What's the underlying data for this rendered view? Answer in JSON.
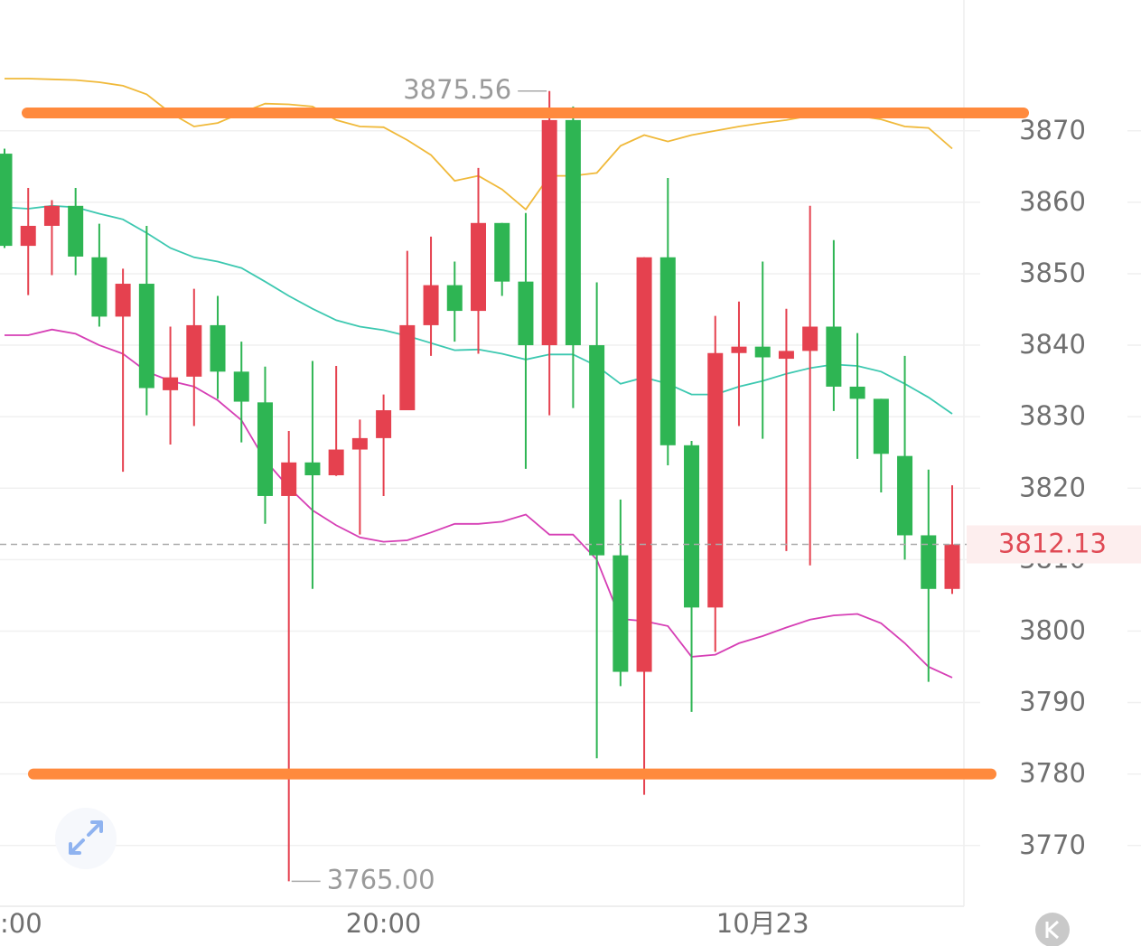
{
  "chart_data": {
    "type": "candlestick",
    "categories": [
      ":00",
      null,
      null,
      null,
      null,
      null,
      null,
      null,
      null,
      null,
      null,
      null,
      null,
      null,
      null,
      null,
      "20:00",
      null,
      null,
      null,
      null,
      null,
      null,
      null,
      null,
      null,
      null,
      null,
      null,
      null,
      null,
      null,
      "10月23",
      null,
      null,
      null,
      null,
      null,
      null,
      null,
      null
    ],
    "open": [
      3866.8,
      3853.9,
      3856.7,
      3859.5,
      3852.3,
      3844.0,
      3848.6,
      3833.7,
      3835.6,
      3842.8,
      3836.3,
      3832.0,
      3818.9,
      3823.6,
      3821.8,
      3825.4,
      3827.0,
      3830.9,
      3842.8,
      3848.4,
      3844.8,
      3857.1,
      3848.9,
      3840.0,
      3871.5,
      3840.0,
      3810.6,
      3794.3,
      3852.3,
      3826.0,
      3803.3,
      3838.9,
      3839.8,
      3838.1,
      3839.2,
      3842.6,
      3834.2,
      3832.5,
      3824.5,
      3813.4,
      3805.9
    ],
    "high": [
      3867.5,
      3862.0,
      3860.3,
      3862.0,
      3857.0,
      3850.7,
      3856.7,
      3842.6,
      3847.9,
      3846.9,
      3840.5,
      3837.0,
      3828.0,
      3837.8,
      3837.1,
      3829.6,
      3833.1,
      3853.2,
      3855.2,
      3851.7,
      3864.8,
      3857.1,
      3858.5,
      3875.56,
      3873.4,
      3848.8,
      3818.4,
      3852.3,
      3863.4,
      3826.6,
      3844.1,
      3846.1,
      3851.7,
      3845.1,
      3859.5,
      3854.7,
      3841.7,
      3832.5,
      3838.5,
      3822.6,
      3820.4
    ],
    "low": [
      3853.6,
      3847.0,
      3849.8,
      3849.8,
      3842.6,
      3822.3,
      3830.2,
      3826.1,
      3828.7,
      3832.5,
      3826.4,
      3815.0,
      3765,
      3805.9,
      3821.7,
      3813.5,
      3818.9,
      3830.9,
      3838.5,
      3840.5,
      3838.8,
      3846.9,
      3822.7,
      3830.2,
      3831.2,
      3782.2,
      3792.3,
      3777.1,
      3823.2,
      3788.7,
      3797.1,
      3828.7,
      3826.9,
      3811.2,
      3809.2,
      3830.8,
      3824.1,
      3819.4,
      3810.0,
      3792.9,
      3805.2
    ],
    "close": [
      3853.9,
      3856.7,
      3859.5,
      3852.4,
      3844.0,
      3848.6,
      3834.0,
      3835.5,
      3842.8,
      3836.3,
      3832.1,
      3818.9,
      3823.6,
      3821.8,
      3825.4,
      3827.0,
      3830.9,
      3842.8,
      3848.4,
      3844.8,
      3857.1,
      3848.9,
      3840.0,
      3871.5,
      3840.0,
      3810.6,
      3794.3,
      3852.3,
      3826.0,
      3803.3,
      3838.9,
      3839.8,
      3838.3,
      3839.2,
      3842.6,
      3834.2,
      3832.5,
      3824.8,
      3813.4,
      3805.9,
      3812.13
    ],
    "up_color": "#e5414f",
    "down_color": "#2eb553",
    "lines": [
      {
        "color": "#f0b93a",
        "values": [
          3877.3,
          3877.3,
          3877.2,
          3877.1,
          3876.8,
          3876.3,
          3875.1,
          3872.5,
          3870.6,
          3871.1,
          3872.5,
          3873.8,
          3873.7,
          3873.4,
          3871.5,
          3870.6,
          3870.5,
          3868.7,
          3866.6,
          3863.0,
          3863.7,
          3861.8,
          3859.0,
          3863.7,
          3863.7,
          3864.1,
          3867.9,
          3869.4,
          3868.5,
          3869.4,
          3870.0,
          3870.6,
          3871.1,
          3871.5,
          3872.1,
          3872.3,
          3872.1,
          3871.6,
          3870.6,
          3870.4,
          3867.5
        ]
      },
      {
        "color": "#3cc8b0",
        "values": [
          3859.3,
          3859.1,
          3859.5,
          3859.3,
          3858.4,
          3857.6,
          3855.7,
          3853.6,
          3852.3,
          3851.7,
          3850.8,
          3848.9,
          3846.9,
          3845.1,
          3843.5,
          3842.6,
          3842.1,
          3841.3,
          3840.3,
          3839.3,
          3839.4,
          3838.8,
          3838.0,
          3838.7,
          3838.7,
          3837.1,
          3834.6,
          3835.5,
          3834.6,
          3833.1,
          3833.1,
          3834.2,
          3835.0,
          3836.0,
          3836.8,
          3837.3,
          3837.1,
          3836.3,
          3834.6,
          3832.7,
          3830.4
        ]
      },
      {
        "color": "#d63fb5",
        "values": [
          3841.4,
          3841.4,
          3842.2,
          3841.6,
          3840.0,
          3838.8,
          3836.3,
          3835.0,
          3834.2,
          3832.3,
          3829.5,
          3823.9,
          3820.1,
          3816.9,
          3814.8,
          3813.1,
          3812.5,
          3812.7,
          3813.8,
          3815.0,
          3815.0,
          3815.3,
          3816.3,
          3813.5,
          3813.5,
          3810.0,
          3801.7,
          3801.4,
          3800.7,
          3796.4,
          3796.7,
          3798.3,
          3799.3,
          3800.5,
          3801.6,
          3802.2,
          3802.4,
          3801.1,
          3798.3,
          3795.0,
          3793.5
        ]
      }
    ],
    "hlines": [
      3872.5,
      3780
    ],
    "hline_color": "#ff8a3d",
    "high_label": {
      "value": 3875.56,
      "label": "3875.56"
    },
    "low_label": {
      "value": 3765,
      "label": "3765.00"
    },
    "last_price": 3812.13,
    "ylim": [
      3761.5,
      3888.3
    ],
    "yticks": [
      3770,
      3780,
      3790,
      3800,
      3810,
      3820,
      3830,
      3840,
      3850,
      3860,
      3870
    ],
    "grid": true
  }
}
